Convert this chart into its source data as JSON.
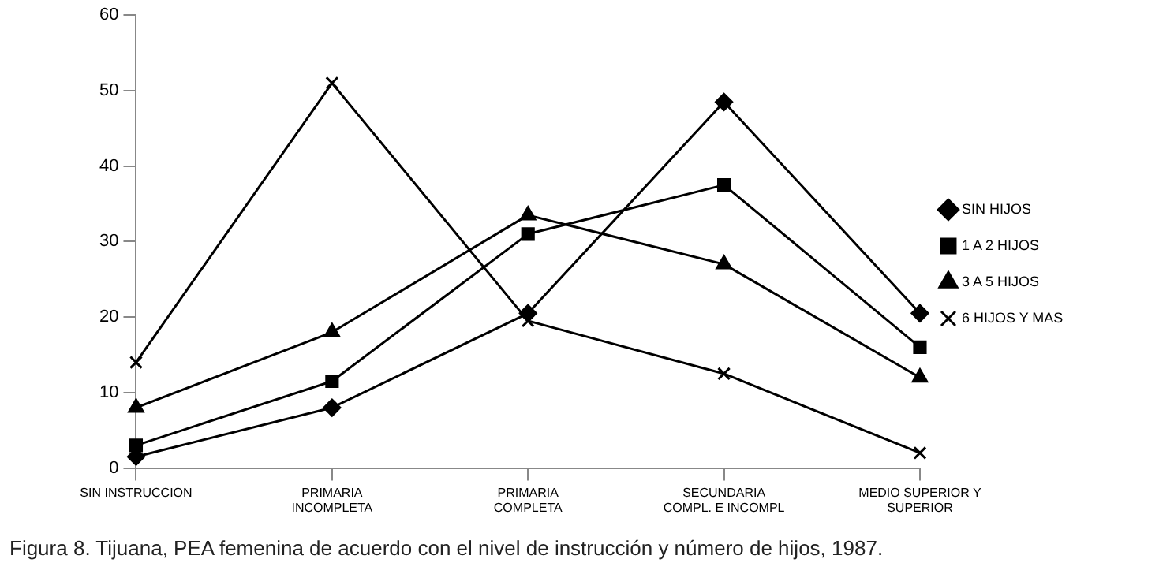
{
  "chart_data": {
    "type": "line",
    "categories": [
      "SIN INSTRUCCION",
      "PRIMARIA\nINCOMPLETA",
      "PRIMARIA\nCOMPLETA",
      "SECUNDARIA\nCOMPL. E INCOMPL",
      "MEDIO SUPERIOR Y\nSUPERIOR"
    ],
    "series": [
      {
        "name": "SIN HIJOS",
        "color": "#000000",
        "marker": "diamond",
        "values": [
          1.5,
          8,
          20.5,
          48.5,
          20.5
        ]
      },
      {
        "name": "1 A 2 HIJOS",
        "color": "#000000",
        "marker": "square",
        "values": [
          3,
          11.5,
          31,
          37.5,
          16
        ]
      },
      {
        "name": "3 A 5 HIJOS",
        "color": "#000000",
        "marker": "triangle",
        "values": [
          8,
          18,
          33.5,
          27,
          12
        ]
      },
      {
        "name": "6 HIJOS Y MAS",
        "color": "#000000",
        "marker": "cross",
        "values": [
          14,
          51,
          19.5,
          12.5,
          2
        ]
      }
    ],
    "ylim": [
      0,
      60
    ],
    "yticks": [
      0,
      10,
      20,
      30,
      40,
      50,
      60
    ],
    "grid": false,
    "legend": "right",
    "line_style": "solid",
    "annotations": [
      "Figura 8. Tijuana, PEA femenina de acuerdo con el nivel de instrucción y número de hijos, 1987."
    ]
  }
}
